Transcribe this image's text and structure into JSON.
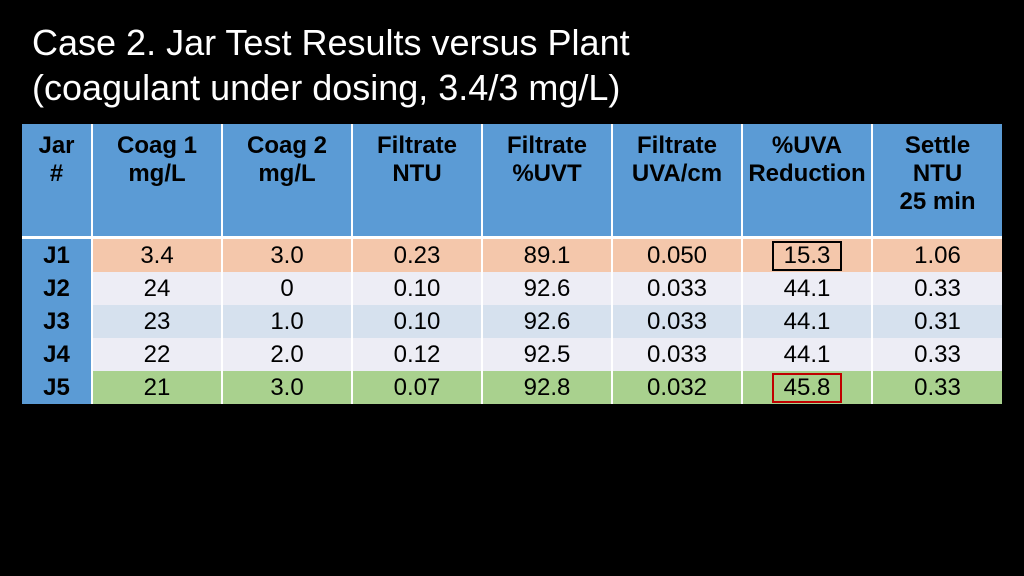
{
  "title_line1": "Case 2.  Jar Test Results versus Plant",
  "title_line2": " (coagulant under dosing, 3.4/3 mg/L)",
  "colors": {
    "header_bg": "#5b9bd5",
    "row_peach": "#f4c7ab",
    "row_lav1": "#ededf5",
    "row_blue": "#d6e1ee",
    "row_lav2": "#ededf5",
    "row_green": "#a9d18e",
    "box_black": "#000000",
    "box_red": "#c00000"
  },
  "columns": [
    "Jar #",
    "Coag 1 mg/L",
    "Coag 2 mg/L",
    "Filtrate NTU",
    "Filtrate %UVT",
    "Filtrate UVA/cm",
    "%UVA Reduction",
    "Settle NTU 25 min"
  ],
  "col_header_lines": [
    [
      "Jar",
      "#"
    ],
    [
      "Coag 1",
      "mg/L"
    ],
    [
      "Coag 2",
      "mg/L"
    ],
    [
      "Filtrate",
      "NTU"
    ],
    [
      "Filtrate",
      "%UVT"
    ],
    [
      "Filtrate",
      "UVA/cm"
    ],
    [
      "%UVA",
      "Reduction"
    ],
    [
      "Settle",
      "NTU",
      "25 min"
    ]
  ],
  "rows": [
    {
      "id": "J1",
      "bg": "row_peach",
      "cells": [
        "3.4",
        "3.0",
        "0.23",
        "89.1",
        "0.050",
        "15.3",
        "1.06"
      ],
      "highlight": {
        "col": 5,
        "box": "box_black"
      }
    },
    {
      "id": "J2",
      "bg": "row_lav1",
      "cells": [
        "24",
        "0",
        "0.10",
        "92.6",
        "0.033",
        "44.1",
        "0.33"
      ]
    },
    {
      "id": "J3",
      "bg": "row_blue",
      "cells": [
        "23",
        "1.0",
        "0.10",
        "92.6",
        "0.033",
        "44.1",
        "0.31"
      ]
    },
    {
      "id": "J4",
      "bg": "row_lav2",
      "cells": [
        "22",
        "2.0",
        "0.12",
        "92.5",
        "0.033",
        "44.1",
        "0.33"
      ]
    },
    {
      "id": "J5",
      "bg": "row_green",
      "cells": [
        "21",
        "3.0",
        "0.07",
        "92.8",
        "0.032",
        "45.8",
        "0.33"
      ],
      "highlight": {
        "col": 5,
        "box": "box_red"
      }
    }
  ]
}
